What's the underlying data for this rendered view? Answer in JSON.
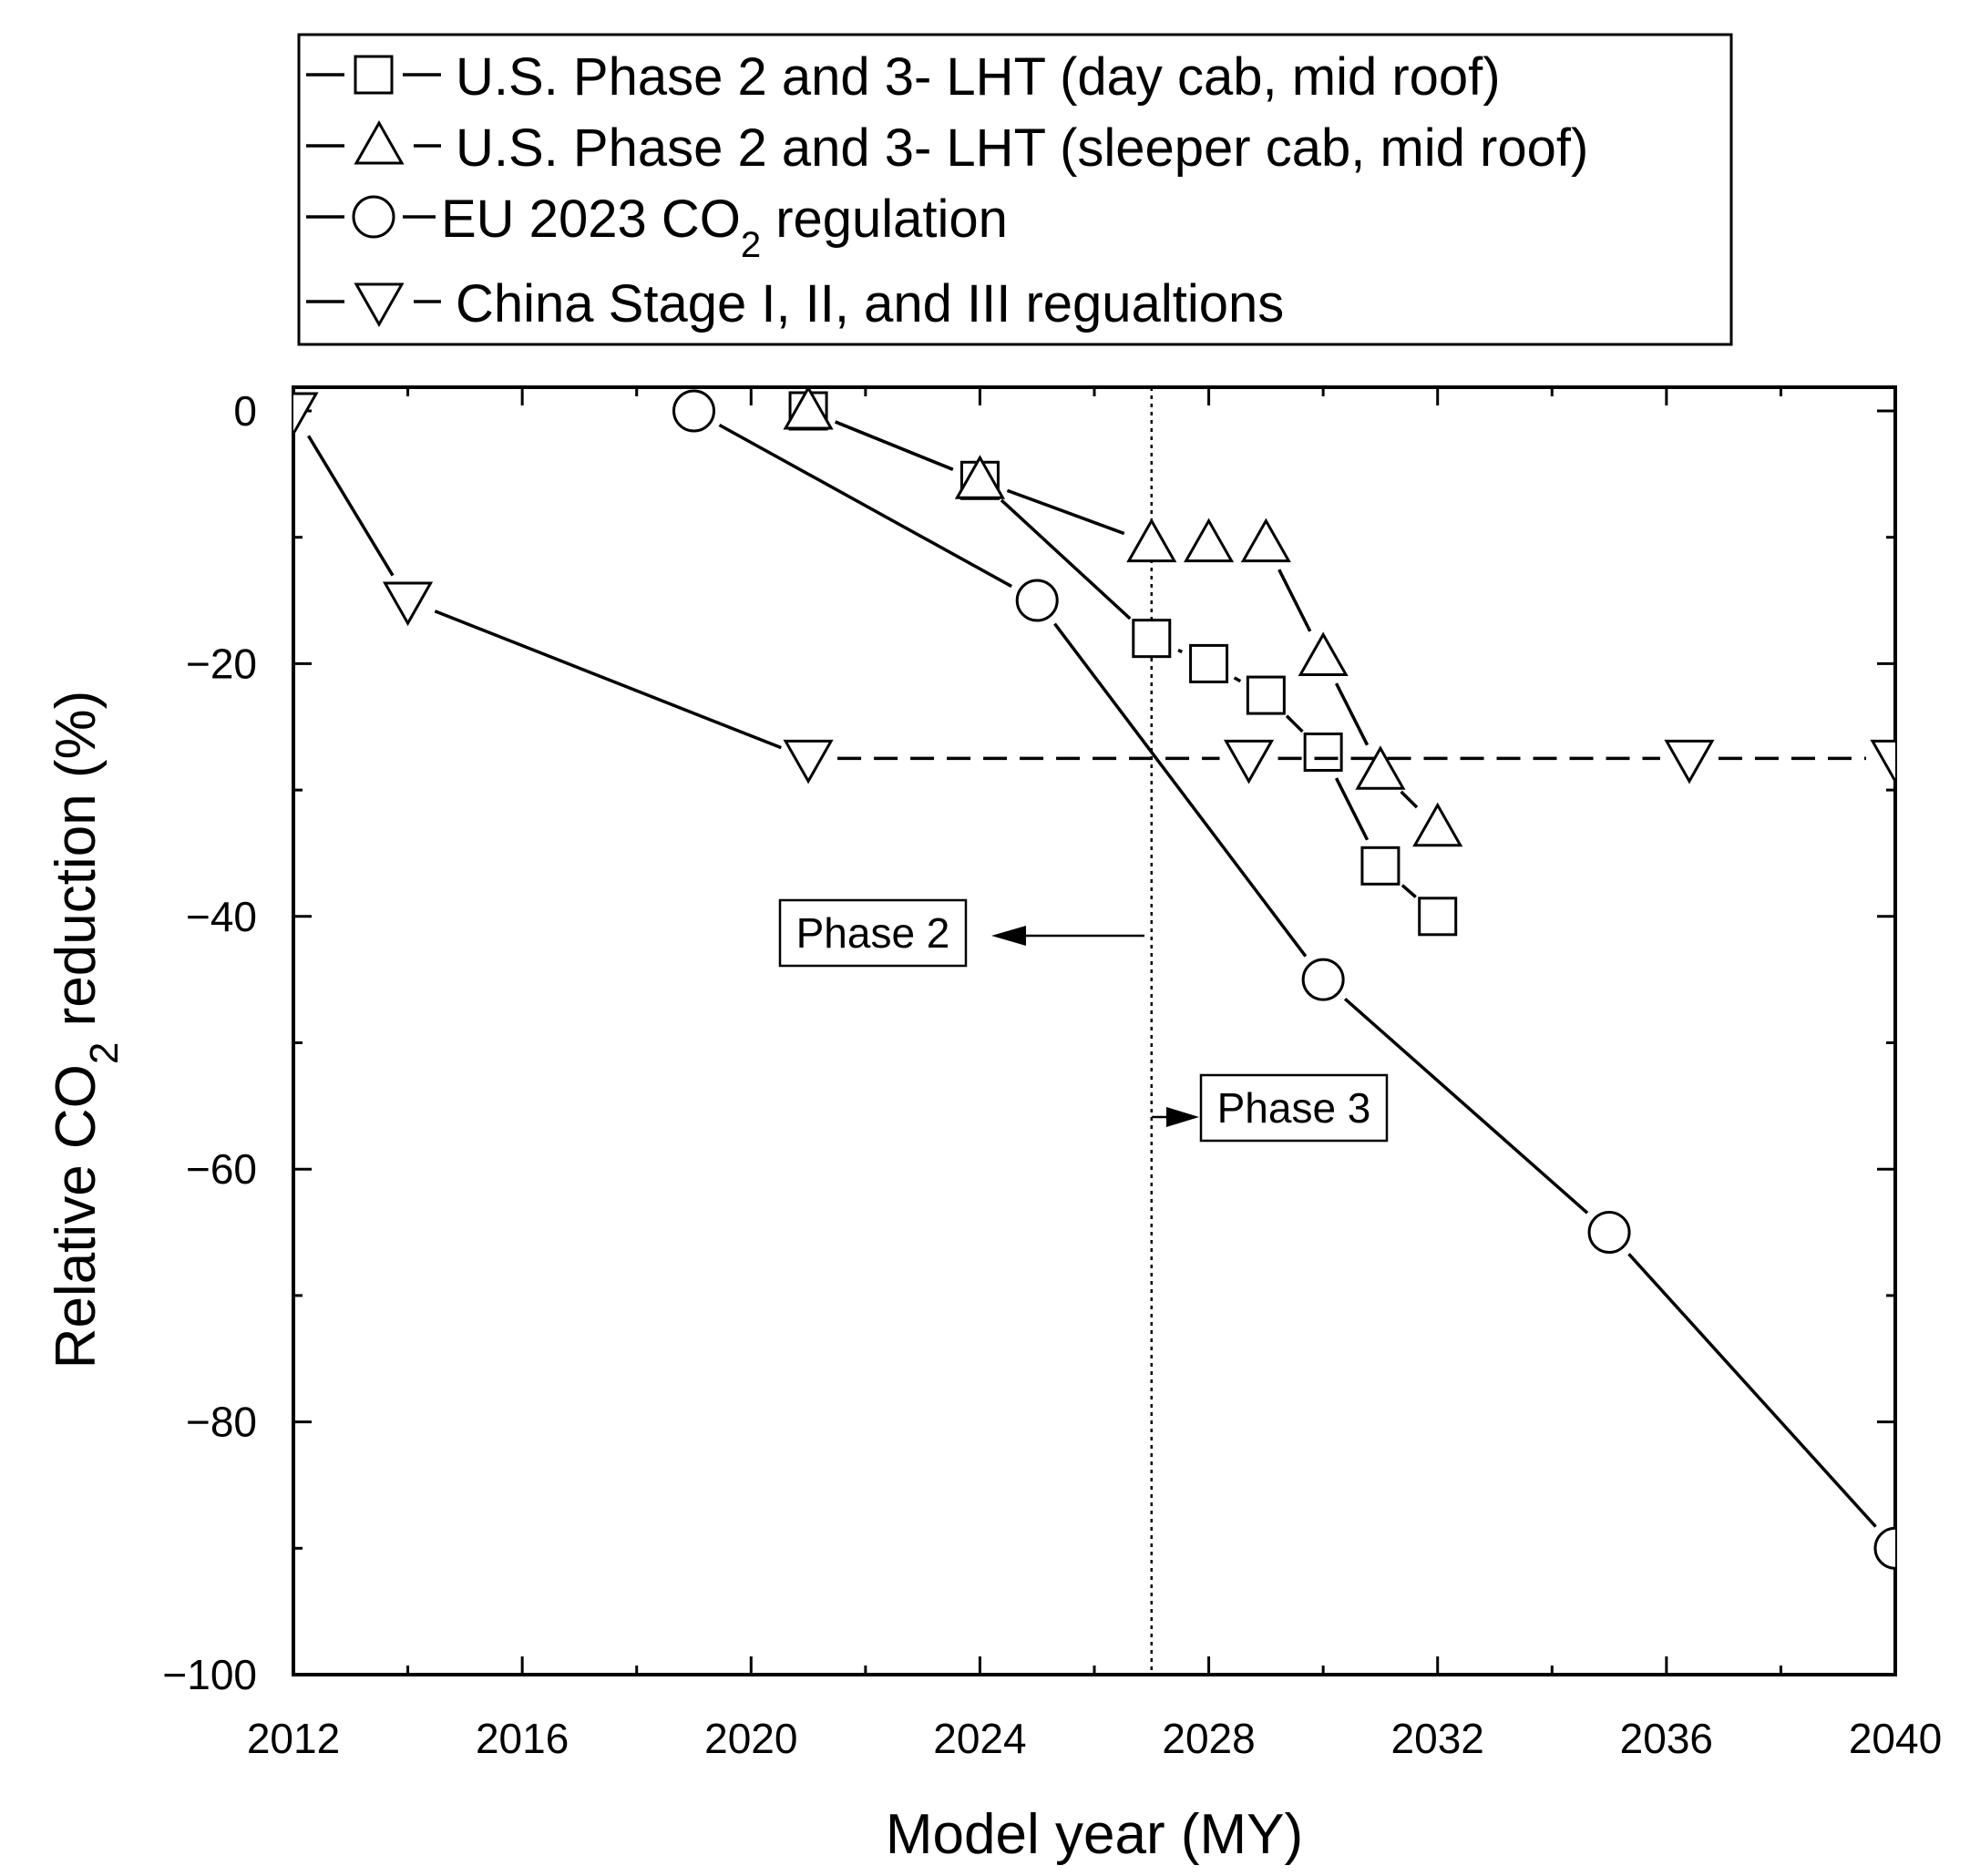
{
  "chart_data": {
    "type": "line",
    "xlabel": "Model year (MY)",
    "ylabel": {
      "prefix": "Relative CO",
      "sub": "2",
      "suffix": " reduction (%)"
    },
    "xlim": [
      2012,
      2040
    ],
    "ylim": [
      -100,
      2
    ],
    "xticks": [
      2012,
      2016,
      2020,
      2024,
      2028,
      2032,
      2036,
      2040
    ],
    "xticks_minor": [
      2014,
      2018,
      2022,
      2026,
      2030,
      2034,
      2038
    ],
    "yticks": [
      0,
      -20,
      -40,
      -60,
      -80,
      -100
    ],
    "xtick_labels": [
      "2012",
      "2016",
      "2020",
      "2024",
      "2028",
      "2032",
      "2036",
      "2040"
    ],
    "ytick_labels": [
      "0",
      "−20",
      "−40",
      "−60",
      "−80",
      "−100"
    ],
    "legend_position": "top",
    "series": [
      {
        "name": "U.S. Phase 2 and 3- LHT (day cab, mid roof)",
        "marker": "square",
        "x": [
          2021,
          2024,
          2027,
          2028,
          2029,
          2030,
          2031,
          2032
        ],
        "y": [
          0,
          -5.5,
          -18,
          -20,
          -22.5,
          -27,
          -36,
          -40
        ],
        "line_style": "solid"
      },
      {
        "name": "U.S. Phase 2 and 3- LHT (sleeper cab, mid roof)",
        "marker": "triangle-up",
        "x": [
          2021,
          2024,
          2027,
          2028,
          2029,
          2030,
          2031,
          2032
        ],
        "y": [
          0,
          -5.5,
          -10.5,
          -10.5,
          -10.5,
          -19.5,
          -28.5,
          -33
        ],
        "line_style": "solid"
      },
      {
        "name": {
          "prefix": "EU 2023 CO",
          "sub": "2",
          "suffix": " regulation"
        },
        "marker": "circle",
        "x": [
          2019,
          2025,
          2030,
          2035,
          2040
        ],
        "y": [
          0,
          -15,
          -45,
          -65,
          -90
        ],
        "line_style": "solid"
      },
      {
        "name": "China Stage I, II, and III regualtions",
        "marker": "triangle-down",
        "x": [
          2012,
          2014,
          2021
        ],
        "y": [
          0,
          -15,
          -27.5
        ],
        "line_style": "solid",
        "extension": {
          "x": [
            2021,
            2028.7,
            2036.4,
            2040
          ],
          "y": [
            -27.5,
            -27.5,
            -27.5,
            -27.5
          ],
          "line_style": "dashed"
        }
      }
    ],
    "vline": {
      "x": 2027,
      "style": "dotted"
    },
    "annotations": [
      {
        "id": "phase2",
        "text": "Phase 2",
        "arrow": "left"
      },
      {
        "id": "phase3",
        "text": "Phase 3",
        "arrow": "right"
      }
    ]
  }
}
